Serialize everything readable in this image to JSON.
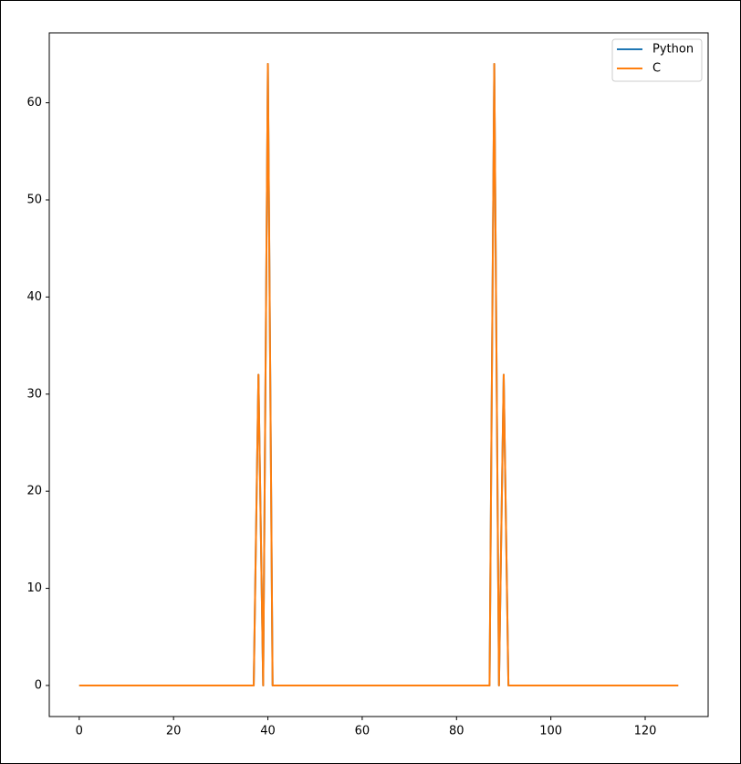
{
  "chart_data": {
    "type": "line",
    "x": [
      0,
      1,
      2,
      3,
      4,
      5,
      6,
      7,
      8,
      9,
      10,
      11,
      12,
      13,
      14,
      15,
      16,
      17,
      18,
      19,
      20,
      21,
      22,
      23,
      24,
      25,
      26,
      27,
      28,
      29,
      30,
      31,
      32,
      33,
      34,
      35,
      36,
      37,
      38,
      39,
      40,
      41,
      42,
      43,
      44,
      45,
      46,
      47,
      48,
      49,
      50,
      51,
      52,
      53,
      54,
      55,
      56,
      57,
      58,
      59,
      60,
      61,
      62,
      63,
      64,
      65,
      66,
      67,
      68,
      69,
      70,
      71,
      72,
      73,
      74,
      75,
      76,
      77,
      78,
      79,
      80,
      81,
      82,
      83,
      84,
      85,
      86,
      87,
      88,
      89,
      90,
      91,
      92,
      93,
      94,
      95,
      96,
      97,
      98,
      99,
      100,
      101,
      102,
      103,
      104,
      105,
      106,
      107,
      108,
      109,
      110,
      111,
      112,
      113,
      114,
      115,
      116,
      117,
      118,
      119,
      120,
      121,
      122,
      123,
      124,
      125,
      126,
      127
    ],
    "series": [
      {
        "name": "Python",
        "color": "#1f77b4",
        "values": [
          0,
          0,
          0,
          0,
          0,
          0,
          0,
          0,
          0,
          0,
          0,
          0,
          0,
          0,
          0,
          0,
          0,
          0,
          0,
          0,
          0,
          0,
          0,
          0,
          0,
          0,
          0,
          0,
          0,
          0,
          0,
          0,
          0,
          0,
          0,
          0,
          0,
          0,
          32,
          0,
          64,
          0,
          0,
          0,
          0,
          0,
          0,
          0,
          0,
          0,
          0,
          0,
          0,
          0,
          0,
          0,
          0,
          0,
          0,
          0,
          0,
          0,
          0,
          0,
          0,
          0,
          0,
          0,
          0,
          0,
          0,
          0,
          0,
          0,
          0,
          0,
          0,
          0,
          0,
          0,
          0,
          0,
          0,
          0,
          0,
          0,
          0,
          0,
          64,
          0,
          32,
          0,
          0,
          0,
          0,
          0,
          0,
          0,
          0,
          0,
          0,
          0,
          0,
          0,
          0,
          0,
          0,
          0,
          0,
          0,
          0,
          0,
          0,
          0,
          0,
          0,
          0,
          0,
          0,
          0,
          0,
          0,
          0,
          0,
          0,
          0,
          0,
          0
        ]
      },
      {
        "name": "C",
        "color": "#ff7f0e",
        "values": [
          0,
          0,
          0,
          0,
          0,
          0,
          0,
          0,
          0,
          0,
          0,
          0,
          0,
          0,
          0,
          0,
          0,
          0,
          0,
          0,
          0,
          0,
          0,
          0,
          0,
          0,
          0,
          0,
          0,
          0,
          0,
          0,
          0,
          0,
          0,
          0,
          0,
          0,
          32,
          0,
          64,
          0,
          0,
          0,
          0,
          0,
          0,
          0,
          0,
          0,
          0,
          0,
          0,
          0,
          0,
          0,
          0,
          0,
          0,
          0,
          0,
          0,
          0,
          0,
          0,
          0,
          0,
          0,
          0,
          0,
          0,
          0,
          0,
          0,
          0,
          0,
          0,
          0,
          0,
          0,
          0,
          0,
          0,
          0,
          0,
          0,
          0,
          0,
          64,
          0,
          32,
          0,
          0,
          0,
          0,
          0,
          0,
          0,
          0,
          0,
          0,
          0,
          0,
          0,
          0,
          0,
          0,
          0,
          0,
          0,
          0,
          0,
          0,
          0,
          0,
          0,
          0,
          0,
          0,
          0,
          0,
          0,
          0,
          0,
          0,
          0,
          0,
          0
        ]
      }
    ],
    "xlim": [
      -6.35,
      133.35
    ],
    "ylim": [
      -3.2,
      67.2
    ],
    "xticks": [
      0,
      20,
      40,
      60,
      80,
      100,
      120
    ],
    "yticks": [
      0,
      10,
      20,
      30,
      40,
      50,
      60
    ],
    "legend": "upper right"
  }
}
